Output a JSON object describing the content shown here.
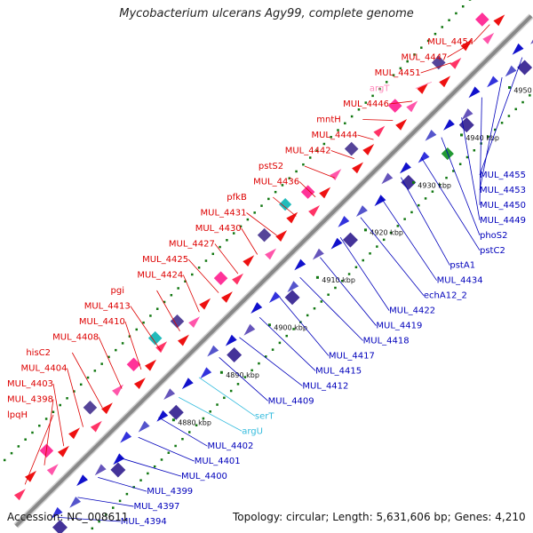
{
  "title": "Mycobacterium ulcerans Agy99, complete genome",
  "footer": {
    "accession": "Accession: NC_008611",
    "topology": "Topology: circular; Length: 5,631,606 bp; Genes: 4,210"
  },
  "colors": {
    "backbone": "#888888",
    "cds_forward": "#ee1111",
    "cds_reverse": "#1111cc",
    "trna": "#ff99cc",
    "tick_green": "#117711",
    "label_forward": "#dd0000",
    "label_reverse": "#0000bb",
    "label_trna_forward": "#ff88bb",
    "label_trna_reverse": "#33bbdd"
  },
  "scale_ticks": [
    "4880 kbp",
    "4890 kbp",
    "4900 kbp",
    "4910 kbp",
    "4920 kbp",
    "4930 kbp",
    "4940 kbp",
    "4950 kbp"
  ],
  "forward_labels": [
    {
      "text": "MUL_4454",
      "kind": "cds"
    },
    {
      "text": "MUL_4447",
      "kind": "cds"
    },
    {
      "text": "MUL_4451",
      "kind": "cds"
    },
    {
      "text": "argT",
      "kind": "trna"
    },
    {
      "text": "MUL_4446",
      "kind": "cds"
    },
    {
      "text": "mntH",
      "kind": "cds"
    },
    {
      "text": "MUL_4444",
      "kind": "cds"
    },
    {
      "text": "MUL_4442",
      "kind": "cds"
    },
    {
      "text": "pstS2",
      "kind": "cds"
    },
    {
      "text": "MUL_4436",
      "kind": "cds"
    },
    {
      "text": "pfkB",
      "kind": "cds"
    },
    {
      "text": "MUL_4431",
      "kind": "cds"
    },
    {
      "text": "MUL_4430",
      "kind": "cds"
    },
    {
      "text": "MUL_4427",
      "kind": "cds"
    },
    {
      "text": "MUL_4425",
      "kind": "cds"
    },
    {
      "text": "MUL_4424",
      "kind": "cds"
    },
    {
      "text": "pgi",
      "kind": "cds"
    },
    {
      "text": "MUL_4413",
      "kind": "cds"
    },
    {
      "text": "MUL_4410",
      "kind": "cds"
    },
    {
      "text": "MUL_4408",
      "kind": "cds"
    },
    {
      "text": "hisC2",
      "kind": "cds"
    },
    {
      "text": "MUL_4404",
      "kind": "cds"
    },
    {
      "text": "MUL_4403",
      "kind": "cds"
    },
    {
      "text": "MUL_4398",
      "kind": "cds"
    },
    {
      "text": "lpqH",
      "kind": "cds"
    }
  ],
  "reverse_labels": [
    {
      "text": "MUL_4455",
      "kind": "cds"
    },
    {
      "text": "MUL_4453",
      "kind": "cds"
    },
    {
      "text": "MUL_4450",
      "kind": "cds"
    },
    {
      "text": "MUL_4449",
      "kind": "cds"
    },
    {
      "text": "phoS2",
      "kind": "cds"
    },
    {
      "text": "pstC2",
      "kind": "cds"
    },
    {
      "text": "pstA1",
      "kind": "cds"
    },
    {
      "text": "MUL_4434",
      "kind": "cds"
    },
    {
      "text": "echA12_2",
      "kind": "cds"
    },
    {
      "text": "MUL_4422",
      "kind": "cds"
    },
    {
      "text": "MUL_4419",
      "kind": "cds"
    },
    {
      "text": "MUL_4418",
      "kind": "cds"
    },
    {
      "text": "MUL_4417",
      "kind": "cds"
    },
    {
      "text": "MUL_4415",
      "kind": "cds"
    },
    {
      "text": "MUL_4412",
      "kind": "cds"
    },
    {
      "text": "MUL_4409",
      "kind": "cds"
    },
    {
      "text": "serT",
      "kind": "trna"
    },
    {
      "text": "argU",
      "kind": "trna"
    },
    {
      "text": "MUL_4402",
      "kind": "cds"
    },
    {
      "text": "MUL_4401",
      "kind": "cds"
    },
    {
      "text": "MUL_4400",
      "kind": "cds"
    },
    {
      "text": "MUL_4399",
      "kind": "cds"
    },
    {
      "text": "MUL_4397",
      "kind": "cds"
    },
    {
      "text": "MUL_4394",
      "kind": "cds"
    }
  ]
}
